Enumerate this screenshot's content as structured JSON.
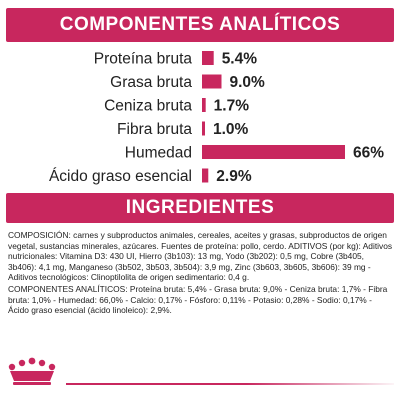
{
  "header": {
    "analysis_title": "COMPONENTES ANALÍTICOS",
    "ingredients_title": "INGREDIENTES"
  },
  "colors": {
    "brand": "#c8275e",
    "bar": "#c8275e",
    "text": "#222222"
  },
  "chart_data": {
    "type": "bar",
    "orientation": "horizontal",
    "categories": [
      "Proteína bruta",
      "Grasa bruta",
      "Ceniza bruta",
      "Fibra bruta",
      "Humedad",
      "Ácido graso esencial"
    ],
    "values": [
      5.4,
      9.0,
      1.7,
      1.0,
      66,
      2.9
    ],
    "value_labels": [
      "5.4%",
      "9.0%",
      "1.7%",
      "1.0%",
      "66%",
      "2.9%"
    ],
    "xlim": [
      0,
      66
    ],
    "grid": false,
    "title": "",
    "xlabel": "",
    "ylabel": ""
  },
  "ingredients": {
    "composition": "COMPOSICIÓN: carnes y subproductos animales, cereales, aceites y grasas, subproductos de origen vegetal, sustancias minerales, azúcares. Fuentes de proteína: pollo, cerdo. ADITIVOS (por kg): Aditivos nutricionales: Vitamina D3: 430 UI, Hierro (3b103): 13 mg, Yodo (3b202): 0,5 mg, Cobre (3b405, 3b406): 4,1 mg, Manganeso (3b502, 3b503, 3b504): 3,9 mg, Zinc (3b603, 3b605, 3b606): 39 mg - Aditivos tecnológicos: Clinoptilolita de origen sedimentario: 0,4 g.",
    "analysis": "COMPONENTES ANALÍTICOS: Proteína bruta: 5,4% - Grasa bruta: 9,0% - Ceniza bruta: 1,7% - Fibra bruta: 1,0% - Humedad: 66,0% - Calcio: 0,17% - Fósforo: 0,11% - Potasio: 0,28% - Sodio: 0,17% - Ácido graso esencial (ácido linoleico): 2,9%."
  },
  "footer": {
    "logo_icon": "royal-canin-crown-icon"
  }
}
